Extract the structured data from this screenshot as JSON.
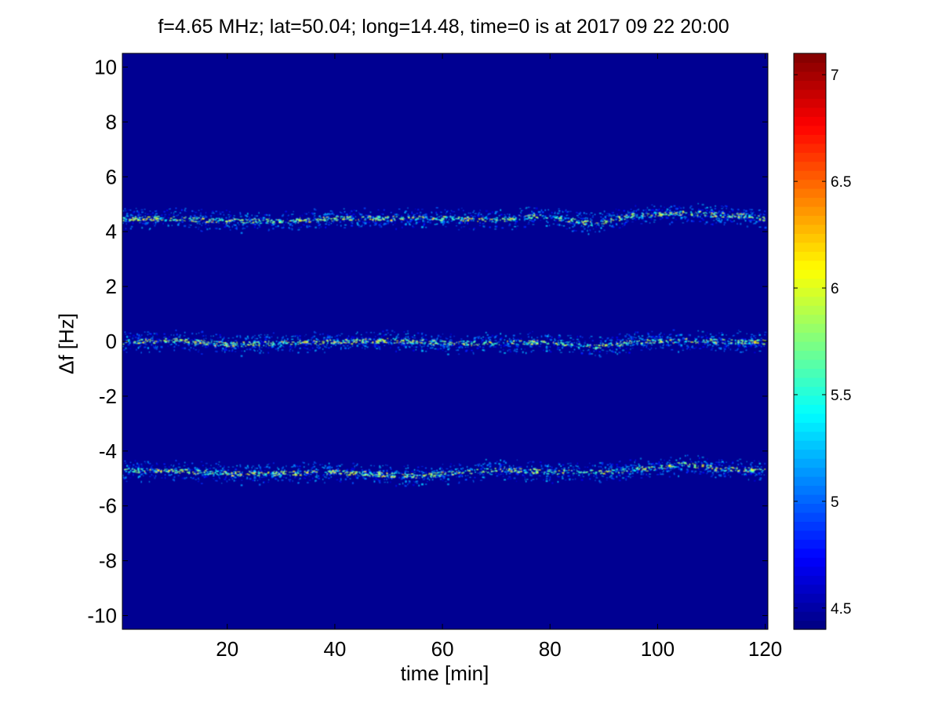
{
  "chart_data": {
    "type": "heatmap",
    "title": "f=4.65 MHz;  lat=50.04; long=14.48, time=0 is at 2017 09 22 20:00",
    "xlabel": "time [min]",
    "ylabel": "Δf [Hz]",
    "xlim": [
      0.5,
      120.5
    ],
    "ylim": [
      -10.5,
      10.5
    ],
    "x_ticks": [
      20,
      40,
      60,
      80,
      100,
      120
    ],
    "y_ticks": [
      10,
      8,
      6,
      4,
      2,
      0,
      -2,
      -4,
      -6,
      -8,
      -10
    ],
    "colorbar": {
      "colormap": "jet",
      "clim": [
        4.4,
        7.1
      ],
      "ticks": [
        7,
        6.5,
        6,
        5.5,
        5,
        4.5
      ]
    },
    "background_value": 4.45,
    "bands": [
      {
        "center_df_hz": 4.5,
        "trace": [
          {
            "t": 0,
            "df": 4.5
          },
          {
            "t": 10,
            "df": 4.5
          },
          {
            "t": 20,
            "df": 4.4
          },
          {
            "t": 30,
            "df": 4.4
          },
          {
            "t": 40,
            "df": 4.5
          },
          {
            "t": 50,
            "df": 4.5
          },
          {
            "t": 60,
            "df": 4.5
          },
          {
            "t": 70,
            "df": 4.45
          },
          {
            "t": 78,
            "df": 4.6
          },
          {
            "t": 88,
            "df": 4.3
          },
          {
            "t": 95,
            "df": 4.6
          },
          {
            "t": 105,
            "df": 4.7
          },
          {
            "t": 115,
            "df": 4.6
          },
          {
            "t": 120,
            "df": 4.5
          }
        ]
      },
      {
        "center_df_hz": 0,
        "trace": [
          {
            "t": 0,
            "df": 0.0
          },
          {
            "t": 10,
            "df": 0.05
          },
          {
            "t": 20,
            "df": -0.1
          },
          {
            "t": 30,
            "df": -0.05
          },
          {
            "t": 40,
            "df": 0.0
          },
          {
            "t": 50,
            "df": 0.05
          },
          {
            "t": 60,
            "df": -0.05
          },
          {
            "t": 70,
            "df": -0.05
          },
          {
            "t": 80,
            "df": 0.0
          },
          {
            "t": 88,
            "df": -0.2
          },
          {
            "t": 95,
            "df": 0.0
          },
          {
            "t": 105,
            "df": 0.05
          },
          {
            "t": 115,
            "df": 0.0
          },
          {
            "t": 120,
            "df": 0.0
          }
        ]
      },
      {
        "center_df_hz": -4.7,
        "trace": [
          {
            "t": 0,
            "df": -4.7
          },
          {
            "t": 10,
            "df": -4.7
          },
          {
            "t": 20,
            "df": -4.8
          },
          {
            "t": 30,
            "df": -4.8
          },
          {
            "t": 40,
            "df": -4.75
          },
          {
            "t": 50,
            "df": -4.85
          },
          {
            "t": 55,
            "df": -4.9
          },
          {
            "t": 60,
            "df": -4.8
          },
          {
            "t": 70,
            "df": -4.65
          },
          {
            "t": 80,
            "df": -4.75
          },
          {
            "t": 90,
            "df": -4.75
          },
          {
            "t": 100,
            "df": -4.6
          },
          {
            "t": 105,
            "df": -4.45
          },
          {
            "t": 110,
            "df": -4.6
          },
          {
            "t": 120,
            "df": -4.7
          }
        ]
      }
    ]
  }
}
